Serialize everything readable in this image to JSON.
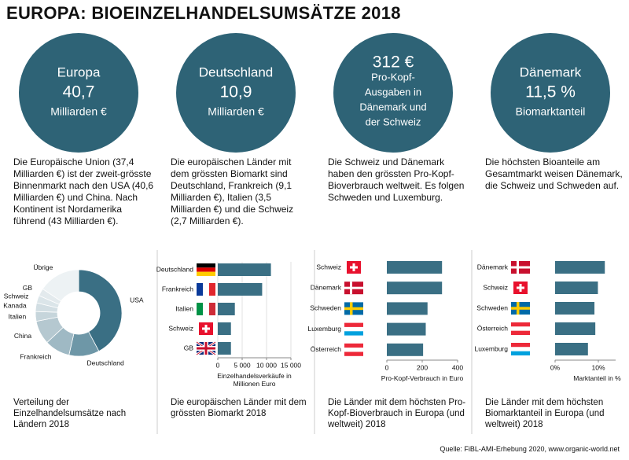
{
  "title": "EUROPA: BIOEINZELHANDELSUMSÄTZE 2018",
  "panels": [
    {
      "circle": [
        "Europa",
        "40,7",
        "Milliarden €"
      ],
      "text": "Die Europäische Union (37,4 Milliarden €) ist der zweit-grösste Binnenmarkt nach den USA (40,6 Milliarden €) und China. Nach Kontinent ist Nordamerika führend  (43 Milliarden €).",
      "caption": "Verteilung der Einzelhandelsumsätze nach Ländern 2018"
    },
    {
      "circle": [
        "Deutschland",
        "10,9",
        "Milliarden €"
      ],
      "text": "Die europäischen Länder mit dem grössten Biomarkt sind Deutschland, Frankreich (9,1 Milliarden €), Italien (3,5 Milliarden €) und die Schweiz (2,7 Milliarden €).",
      "caption": "Die europäischen  Länder mit dem grössten Biomarkt 2018"
    },
    {
      "circle": [
        "312 €",
        "Pro-Kopf-",
        "Ausgaben in",
        "Dänemark und",
        "der Schweiz"
      ],
      "text": "Die Schweiz und Dänemark haben den grössten Pro-Kopf-Bioverbrauch weltweit. Es folgen Schweden und Luxemburg.",
      "caption": "Die Länder mit dem höchsten Pro-Kopf-Bioverbrauch in Europa (und weltweit) 2018"
    },
    {
      "circle": [
        "Dänemark",
        "11,5 %",
        "Biomarktanteil"
      ],
      "text": "Die höchsten Bioanteile am Gesamtmarkt weisen Dänemark, die Schweiz und Schweden auf.",
      "caption": "Die Länder mit dem höchsten Biomarktanteil in Europa  (und weltweit) 2018"
    }
  ],
  "chart_data": [
    {
      "type": "pie",
      "categories": [
        "USA",
        "Deutschland",
        "Frankreich",
        "China",
        "Italien",
        "Kanada",
        "Schweiz",
        "GB",
        "Übrige"
      ],
      "values": [
        40.6,
        10.9,
        9.1,
        8.5,
        3.5,
        3.1,
        2.7,
        2.7,
        15
      ],
      "colors": [
        "#3a6f84",
        "#6e97a7",
        "#9fb9c4",
        "#b5c8d0",
        "#c6d5db",
        "#d2dee3",
        "#dbe5e9",
        "#e3eaed",
        "#edf2f4"
      ]
    },
    {
      "type": "bar",
      "categories": [
        "Deutschland",
        "Frankreich",
        "Italien",
        "Schweiz",
        "GB"
      ],
      "values": [
        10900,
        9100,
        3500,
        2700,
        2700
      ],
      "color": "#3a6f84",
      "xlim": [
        0,
        15000
      ],
      "xticks": [
        0,
        {
          "value": 5000,
          "label": "5 000"
        },
        {
          "value": 10000,
          "label": "10 000"
        },
        {
          "value": 15000,
          "label": "15 000"
        }
      ],
      "grid": true,
      "xlabel": "Einzelhandelsverkäufe in Millionen Euro"
    },
    {
      "type": "bar",
      "categories": [
        "Schweiz",
        "Dänemark",
        "Schweden",
        "Luxemburg",
        "Österreich"
      ],
      "values": [
        312,
        312,
        230,
        220,
        205
      ],
      "color": "#3a6f84",
      "xlim": [
        0,
        400
      ],
      "xticks": [
        0,
        200,
        400
      ],
      "grid": false,
      "xlabel": "Pro-Kopf-Verbrauch in Euro"
    },
    {
      "type": "bar",
      "categories": [
        "Dänemark",
        "Schweiz",
        "Schweden",
        "Österreich",
        "Luxemburg"
      ],
      "values": [
        11.5,
        9.9,
        9.1,
        9.3,
        7.6
      ],
      "color": "#3a6f84",
      "xlim": [
        0,
        14
      ],
      "xticks": [
        {
          "value": 0,
          "label": "0%"
        },
        {
          "value": 10,
          "label": "10%"
        }
      ],
      "grid": false,
      "xlabel": "Marktanteil in %"
    }
  ],
  "source": "Quelle: FiBL-AMI-Erhebung 2020,  www.organic-world.net"
}
